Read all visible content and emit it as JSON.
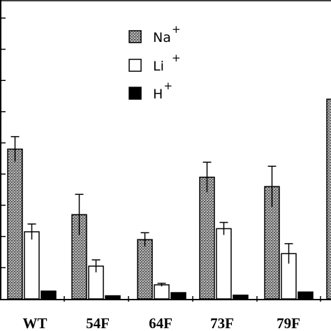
{
  "chart_data": {
    "type": "bar",
    "title": "",
    "xlabel": "",
    "ylabel": "",
    "ylim": [
      0,
      9.4
    ],
    "grid": false,
    "legend": "top-center",
    "categories": [
      "WT",
      "54F",
      "64F",
      "73F",
      "79F"
    ],
    "series": [
      {
        "name": "Na",
        "sup": "+",
        "pattern": "stipple",
        "values": [
          4.8,
          2.7,
          1.9,
          3.9,
          3.6
        ],
        "errors": [
          0.4,
          0.65,
          0.22,
          0.48,
          0.65
        ]
      },
      {
        "name": "Li",
        "sup": "+",
        "pattern": "open",
        "values": [
          2.15,
          1.05,
          0.45,
          2.25,
          1.45
        ],
        "errors": [
          0.25,
          0.2,
          0.05,
          0.2,
          0.32
        ]
      },
      {
        "name": "H",
        "sup": "+",
        "pattern": "solid",
        "values": [
          0.25,
          0.1,
          0.2,
          0.12,
          0.22
        ],
        "errors": [
          0,
          0,
          0,
          0,
          0
        ]
      }
    ],
    "partial_bar_at_right_edge": {
      "pattern": "stipple",
      "value": 6.4
    },
    "colors": {
      "stipple_fill": "#8a8a8a",
      "open_fill": "#ffffff",
      "solid_fill": "#000000",
      "axis": "#000000"
    }
  }
}
